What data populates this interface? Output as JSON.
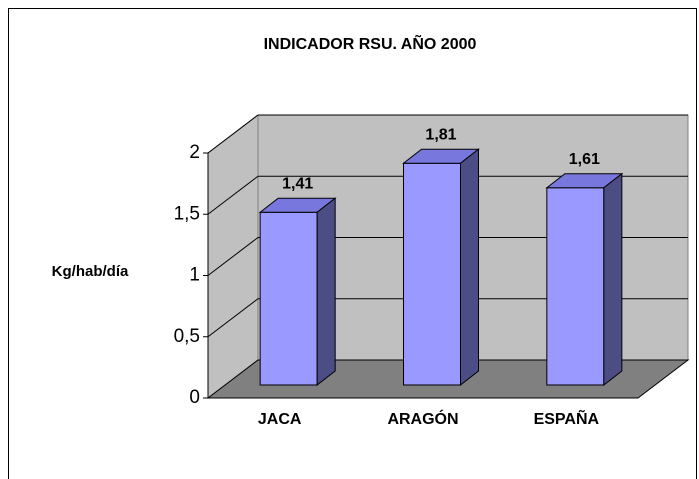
{
  "chart_data": {
    "type": "bar3d",
    "title": "INDICADOR RSU. AÑO 2000",
    "y_label": "Kg/hab/día",
    "categories": [
      "JACA",
      "ARAGÓN",
      "ESPAÑA"
    ],
    "values": [
      1.41,
      1.81,
      1.61
    ],
    "value_labels": [
      "1,41",
      "1,81",
      "1,61"
    ],
    "color": "#9999ff",
    "ylim": [
      0,
      2
    ],
    "yticks": [
      0,
      {
        "value": 0.5,
        "label": "0,5"
      },
      1,
      {
        "value": 1.5,
        "label": "1,5"
      },
      2
    ],
    "grid": true
  }
}
